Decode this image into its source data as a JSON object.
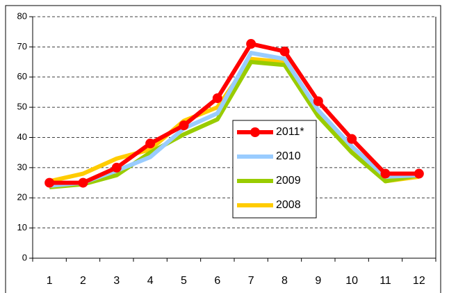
{
  "chart_data": {
    "type": "line",
    "categories": [
      "1",
      "2",
      "3",
      "4",
      "5",
      "6",
      "7",
      "8",
      "9",
      "10",
      "11",
      "12"
    ],
    "series": [
      {
        "name": "2011*",
        "color": "#ff0000",
        "markers": true,
        "values": [
          25,
          25,
          30,
          38,
          44,
          53,
          71,
          68.5,
          52,
          39.5,
          28,
          28
        ]
      },
      {
        "name": "2010",
        "color": "#99ccff",
        "markers": false,
        "values": [
          24,
          25,
          29,
          33.5,
          43,
          48,
          68,
          66,
          49,
          37,
          27,
          27.5
        ]
      },
      {
        "name": "2009",
        "color": "#99cc00",
        "markers": false,
        "values": [
          23.5,
          24.5,
          27.5,
          35,
          41,
          46,
          65,
          64,
          47,
          35,
          25.5,
          27.5
        ]
      },
      {
        "name": "2008",
        "color": "#ffcc00",
        "markers": false,
        "values": [
          25.5,
          28,
          33,
          36,
          45.5,
          50,
          66,
          65,
          48,
          37,
          25.5,
          27
        ]
      }
    ],
    "ylim": [
      0,
      80
    ],
    "yticks": [
      0,
      10,
      20,
      30,
      40,
      50,
      60,
      70,
      80
    ],
    "grid": true,
    "legend": "center"
  }
}
